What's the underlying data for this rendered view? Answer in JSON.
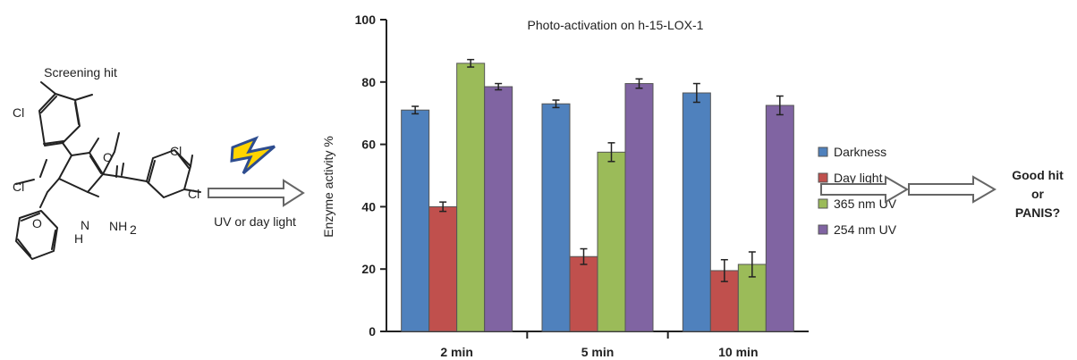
{
  "screening_hit": {
    "label": "Screening hit",
    "atoms": {
      "cl_top_left": "Cl",
      "cl_mid_left": "Cl",
      "cl_right_upper": "Cl",
      "cl_right_lower": "Cl",
      "oxygen_left": "O",
      "oxygen_right": "O",
      "amine": "NH",
      "amine_sub": "2",
      "ring_n": "N",
      "ring_h": "H"
    }
  },
  "activation": {
    "label": "UV or day light",
    "icon": "lightning-bolt-icon",
    "colors": {
      "bolt": "#ffd400",
      "bolt_outline": "#2e4d8f"
    }
  },
  "conclusion": {
    "line1": "Good hit",
    "line2": "or",
    "line3": "PANIS?"
  },
  "chart_data": {
    "type": "bar",
    "title": "Photo-activation  on h-15-LOX-1",
    "xlabel": "",
    "ylabel": "Enzyme activity %",
    "categories": [
      "2 min",
      "5 min",
      "10 min"
    ],
    "ylim": [
      0,
      100
    ],
    "yticks": [
      0,
      20,
      40,
      60,
      80,
      100
    ],
    "grid": false,
    "legend_position": "right",
    "series": [
      {
        "name": "Darkness",
        "color": "#4f81bd",
        "values": [
          71,
          73,
          76.5
        ],
        "errors": [
          1.2,
          1.2,
          3
        ]
      },
      {
        "name": "Day light",
        "color": "#c0504d",
        "values": [
          40,
          24,
          19.5
        ],
        "errors": [
          1.5,
          2.5,
          3.5
        ]
      },
      {
        "name": "365 nm UV",
        "color": "#9bbb59",
        "values": [
          86,
          57.5,
          21.5
        ],
        "errors": [
          1.2,
          3,
          4
        ]
      },
      {
        "name": "254 nm UV",
        "color": "#8064a2",
        "values": [
          78.5,
          79.5,
          72.5
        ],
        "errors": [
          1,
          1.5,
          3
        ]
      }
    ]
  }
}
